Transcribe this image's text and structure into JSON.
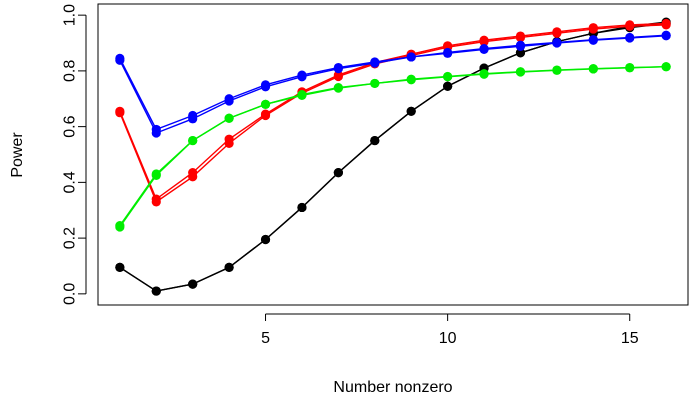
{
  "chart_data": {
    "type": "line",
    "title": "",
    "xlabel": "Number nonzero",
    "ylabel": "Power",
    "xlim": [
      0.4,
      16.6
    ],
    "ylim": [
      -0.04,
      1.04
    ],
    "x_ticks": [
      5,
      10,
      15
    ],
    "x_tick_labels": [
      "5",
      "10",
      "15"
    ],
    "y_ticks": [
      0.0,
      0.2,
      0.4,
      0.6,
      0.8,
      1.0
    ],
    "y_tick_labels": [
      "0.0",
      "0.2",
      "0.4",
      "0.6",
      "0.8",
      "1.0"
    ],
    "grid": false,
    "legend": "none",
    "x": [
      1,
      2,
      3,
      4,
      5,
      6,
      7,
      8,
      9,
      10,
      11,
      12,
      13,
      14,
      15,
      16
    ],
    "series": [
      {
        "color": "#000000",
        "values": [
          0.095,
          0.01,
          0.035,
          0.095,
          0.195,
          0.31,
          0.435,
          0.55,
          0.655,
          0.745,
          0.81,
          0.865,
          0.905,
          0.935,
          0.955,
          0.97
        ]
      },
      {
        "color": "#000000",
        "values": [
          0.095,
          0.01,
          0.035,
          0.095,
          0.195,
          0.31,
          0.435,
          0.55,
          0.655,
          0.745,
          0.81,
          0.865,
          0.905,
          0.935,
          0.96,
          0.975
        ]
      },
      {
        "color": "#FF0000",
        "values": [
          0.655,
          0.34,
          0.435,
          0.555,
          0.645,
          0.725,
          0.785,
          0.83,
          0.86,
          0.89,
          0.91,
          0.925,
          0.94,
          0.955,
          0.965,
          0.97
        ]
      },
      {
        "color": "#FF0000",
        "values": [
          0.65,
          0.33,
          0.42,
          0.54,
          0.64,
          0.72,
          0.78,
          0.825,
          0.855,
          0.885,
          0.905,
          0.92,
          0.935,
          0.95,
          0.96,
          0.965
        ]
      },
      {
        "color": "#00EE00",
        "values": [
          0.245,
          0.43,
          0.55,
          0.63,
          0.68,
          0.715,
          0.74,
          0.755,
          0.77,
          0.78,
          0.79,
          0.797,
          0.803,
          0.808,
          0.812,
          0.815
        ]
      },
      {
        "color": "#00EE00",
        "values": [
          0.24,
          0.425,
          0.55,
          0.63,
          0.68,
          0.712,
          0.738,
          0.755,
          0.768,
          0.779,
          0.788,
          0.796,
          0.802,
          0.807,
          0.811,
          0.815
        ]
      },
      {
        "color": "#0000FF",
        "values": [
          0.845,
          0.59,
          0.64,
          0.7,
          0.75,
          0.785,
          0.812,
          0.832,
          0.85,
          0.866,
          0.88,
          0.892,
          0.902,
          0.912,
          0.92,
          0.928
        ]
      },
      {
        "color": "#0000FF",
        "values": [
          0.838,
          0.577,
          0.628,
          0.692,
          0.743,
          0.779,
          0.808,
          0.828,
          0.85,
          0.863,
          0.877,
          0.888,
          0.9,
          0.91,
          0.918,
          0.926
        ]
      }
    ]
  }
}
